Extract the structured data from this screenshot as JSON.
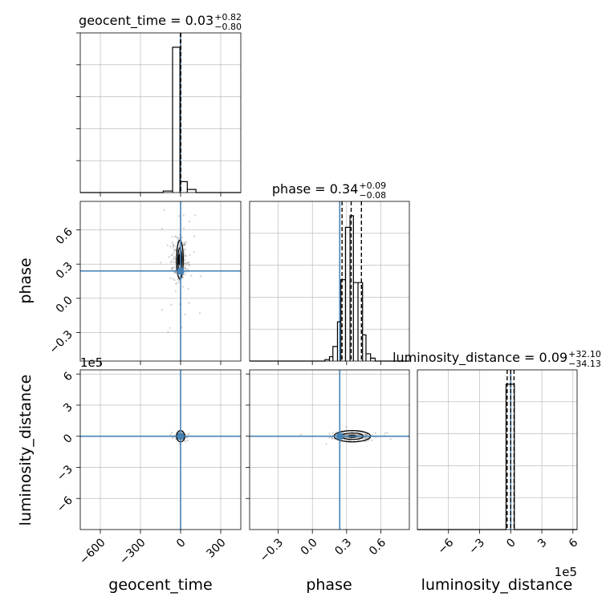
{
  "chart_data": [
    {
      "type": "histogram",
      "panel": "geocent_time-1d",
      "title_name": "geocent_time",
      "title_value": "0.03",
      "title_plus": "+0.82",
      "title_minus": "−0.80",
      "xlim": [
        -750,
        450
      ],
      "bins": [
        {
          "x0": -130,
          "x1": -60,
          "count": 0.01
        },
        {
          "x0": -60,
          "x1": -5,
          "count": 0.93
        },
        {
          "x0": -5,
          "x1": 50,
          "count": 0.07
        },
        {
          "x0": 50,
          "x1": 115,
          "count": 0.02
        },
        {
          "x0": 115,
          "x1": 170,
          "count": 0.0
        }
      ],
      "quantile_lines": [
        -0.77,
        0.03,
        0.85
      ],
      "truth": 0.0,
      "grid": true
    },
    {
      "type": "histogram",
      "panel": "phase-1d",
      "title_name": "phase",
      "title_value": "0.34",
      "title_plus": "+0.09",
      "title_minus": "−0.08",
      "xlim": [
        -0.55,
        0.85
      ],
      "bins": [
        {
          "x0": -0.02,
          "x1": 0.11,
          "count": 0.0
        },
        {
          "x0": 0.11,
          "x1": 0.15,
          "count": 0.01
        },
        {
          "x0": 0.15,
          "x1": 0.18,
          "count": 0.03
        },
        {
          "x0": 0.18,
          "x1": 0.22,
          "count": 0.1
        },
        {
          "x0": 0.22,
          "x1": 0.25,
          "count": 0.27
        },
        {
          "x0": 0.25,
          "x1": 0.29,
          "count": 0.56
        },
        {
          "x0": 0.29,
          "x1": 0.33,
          "count": 0.92
        },
        {
          "x0": 0.33,
          "x1": 0.36,
          "count": 1.0
        },
        {
          "x0": 0.36,
          "x1": 0.4,
          "count": 0.54
        },
        {
          "x0": 0.4,
          "x1": 0.44,
          "count": 0.54
        },
        {
          "x0": 0.44,
          "x1": 0.47,
          "count": 0.18
        },
        {
          "x0": 0.47,
          "x1": 0.51,
          "count": 0.05
        },
        {
          "x0": 0.51,
          "x1": 0.55,
          "count": 0.02
        },
        {
          "x0": 0.55,
          "x1": 0.62,
          "count": 0.0
        }
      ],
      "quantile_lines": [
        0.26,
        0.34,
        0.43
      ],
      "truth": 0.24,
      "grid": true
    },
    {
      "type": "histogram",
      "panel": "luminosity_distance-1d",
      "title_name": "luminosity_distance",
      "title_value": "0.09",
      "title_plus": "+32.10",
      "title_minus": "−34.13",
      "xlim": [
        -9,
        6.4
      ],
      "scale_label": "1e5",
      "bins": [
        {
          "x0": -0.45,
          "x1": 0.35,
          "count": 1.0
        }
      ],
      "quantile_lines": [
        -0.34,
        0.0,
        0.32
      ],
      "truth": 0.0,
      "grid": true
    },
    {
      "type": "scatter",
      "panel": "phase-vs-geocent_time",
      "x_name": "geocent_time",
      "y_name": "phase",
      "xlim": [
        -750,
        450
      ],
      "ylim": [
        -0.55,
        0.85
      ],
      "truth": {
        "x": 0.0,
        "y": 0.24
      },
      "center": {
        "x": -5,
        "y": 0.34
      },
      "spread": {
        "x": 28,
        "y": 0.1
      },
      "contour_half_width": {
        "x": 25,
        "y": 0.17
      },
      "grid": true
    },
    {
      "type": "scatter",
      "panel": "luminosity_distance-vs-geocent_time",
      "x_name": "geocent_time",
      "y_name": "luminosity_distance",
      "xlim": [
        -750,
        450
      ],
      "ylim": [
        -9,
        6.4
      ],
      "scale_label": "1e5",
      "truth": {
        "x": 0.0,
        "y": 0.0
      },
      "center": {
        "x": 0.0,
        "y": 0.0
      },
      "spread": {
        "x": 15,
        "y": 0.12
      },
      "grid": true
    },
    {
      "type": "scatter",
      "panel": "luminosity_distance-vs-phase",
      "x_name": "phase",
      "y_name": "luminosity_distance",
      "xlim": [
        -0.55,
        0.85
      ],
      "ylim": [
        -9,
        6.4
      ],
      "truth": {
        "x": 0.24,
        "y": 0.0
      },
      "center": {
        "x": 0.35,
        "y": 0.0
      },
      "spread": {
        "x": 0.08,
        "y": 0.15
      },
      "grid": true
    }
  ],
  "axes": {
    "geocent_time": {
      "label": "geocent_time",
      "ticks": [
        {
          "v": -600,
          "t": "−600"
        },
        {
          "v": -300,
          "t": "−300"
        },
        {
          "v": 0,
          "t": "0"
        },
        {
          "v": 300,
          "t": "300"
        }
      ]
    },
    "phase": {
      "label": "phase",
      "ticks": [
        {
          "v": -0.3,
          "t": "−0.3"
        },
        {
          "v": 0.0,
          "t": "0.0"
        },
        {
          "v": 0.3,
          "t": "0.3"
        },
        {
          "v": 0.6,
          "t": "0.6"
        }
      ]
    },
    "luminosity_distance": {
      "label": "luminosity_distance",
      "scale_label": "1e5",
      "ticks": [
        {
          "v": -6,
          "t": "−6"
        },
        {
          "v": -3,
          "t": "−3"
        },
        {
          "v": 0,
          "t": "0"
        },
        {
          "v": 3,
          "t": "3"
        },
        {
          "v": 6,
          "t": "6"
        }
      ]
    }
  },
  "colors": {
    "truth": "#4682b4",
    "hist": "#000000",
    "grid": "#b0b0b0",
    "points": "#9a9a9a"
  }
}
